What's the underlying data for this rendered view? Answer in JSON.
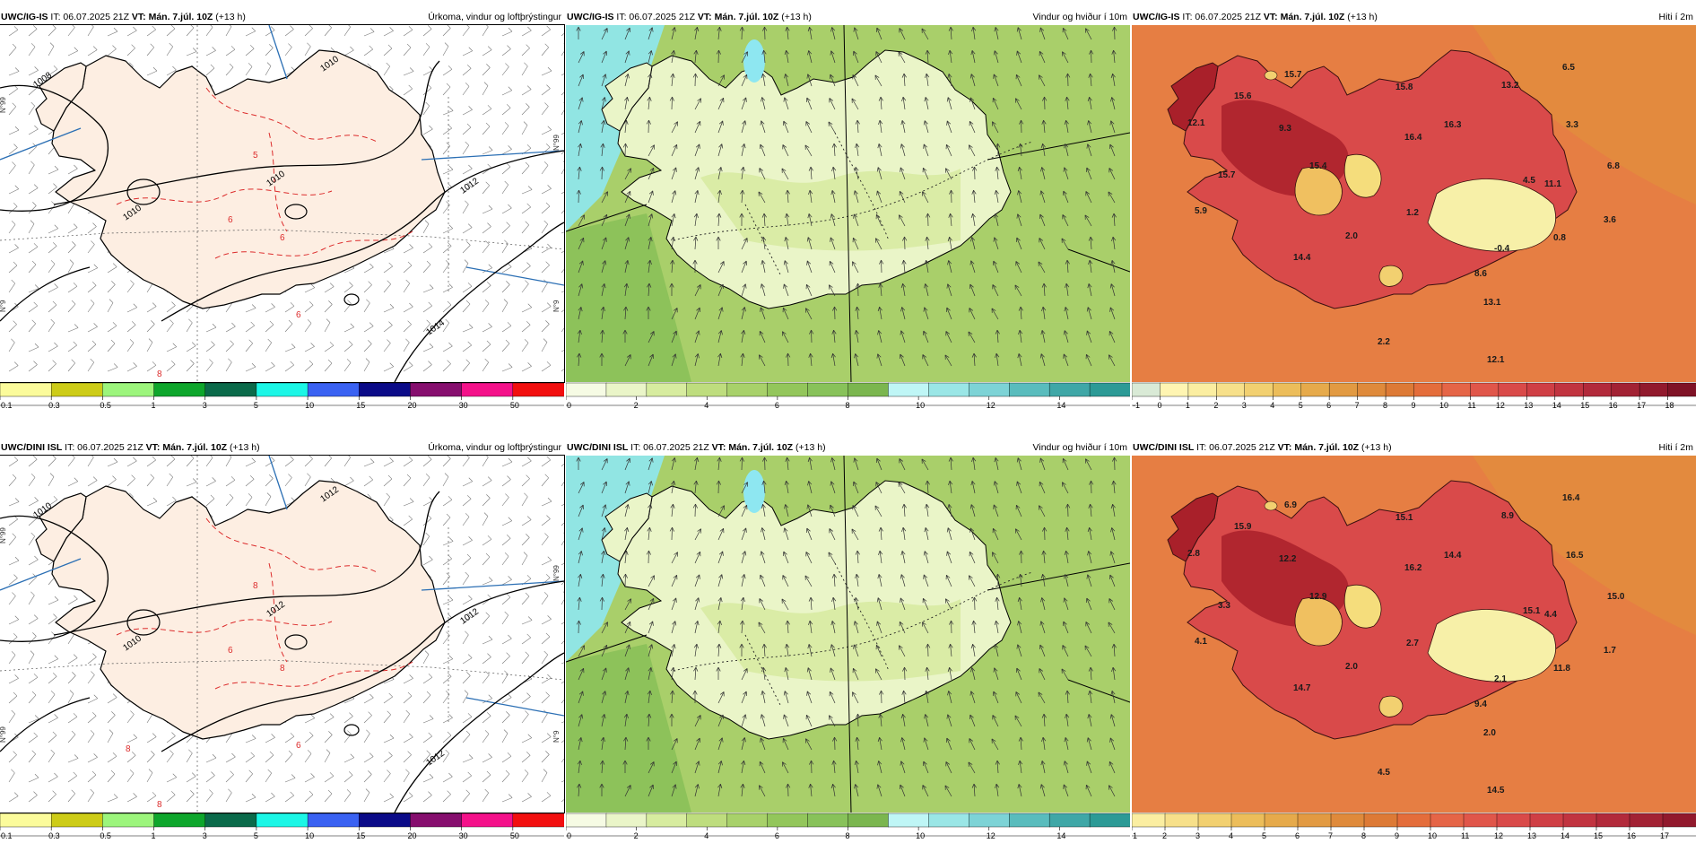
{
  "colors": {
    "land_precip": "#fdeee2",
    "sea": "#ffffff",
    "isobar": "#000000",
    "temp_contour": "#dc2b2b",
    "meridian": "#2b6fb4",
    "wind_mid": "#a9cf6a",
    "wind_low": "#eaf5c8",
    "wind_high": "#8dc25a",
    "wind_lake": "#8ee7f1",
    "temp_bg": "#e67e43",
    "temp_land": "#d94a4a",
    "temp_hot": "#a9202a",
    "temp_cold": "#f7f0a8"
  },
  "precip_scale": {
    "labels": [
      "0.1",
      "0.3",
      "0.5",
      "1",
      "3",
      "5",
      "10",
      "15",
      "20",
      "30",
      "50"
    ],
    "colors": [
      "#fbfb9b",
      "#cdcc18",
      "#9cf57c",
      "#0ea62c",
      "#0b6a4a",
      "#1cf6e6",
      "#3a62f2",
      "#0b0b88",
      "#860e6e",
      "#f4118a",
      "#f20f0f"
    ]
  },
  "wind_scale": {
    "labels": [
      "0",
      "2",
      "4",
      "6",
      "8",
      "10",
      "12",
      "14"
    ],
    "colors": [
      "#f6fbe4",
      "#eaf5c8",
      "#d7ec9f",
      "#bedd7e",
      "#a8d16a",
      "#93c65b",
      "#88c25a",
      "#7bb64f",
      "#bff6f6",
      "#9ae6e6",
      "#7dd3d6",
      "#59bcbd",
      "#3fa7a7",
      "#2c9a96"
    ]
  },
  "temp_scale_top": {
    "labels": [
      "-1",
      "0",
      "1",
      "2",
      "3",
      "4",
      "5",
      "6",
      "7",
      "8",
      "9",
      "10",
      "11",
      "12",
      "13",
      "14",
      "15",
      "16",
      "17",
      "18"
    ],
    "colors": [
      "#d9ead6",
      "#fff5b2",
      "#fbeea1",
      "#f7e08a",
      "#f2d070",
      "#ecbd5a",
      "#e6aa4b",
      "#e29a42",
      "#df8a3b",
      "#dd7a36",
      "#e46d3b",
      "#e56547",
      "#e0564a",
      "#d94a49",
      "#cf3f45",
      "#c13440",
      "#b22a3b",
      "#a22234",
      "#91192d",
      "#7f1226"
    ]
  },
  "temp_scale_bottom": {
    "labels": [
      "1",
      "2",
      "3",
      "4",
      "5",
      "6",
      "7",
      "8",
      "9",
      "10",
      "11",
      "12",
      "13",
      "14",
      "15",
      "16",
      "17"
    ],
    "colors": [
      "#fbeea1",
      "#f7e08a",
      "#f2d070",
      "#ecbd5a",
      "#e6aa4b",
      "#e29a42",
      "#df8a3b",
      "#dd7a36",
      "#e46d3b",
      "#e56547",
      "#e0564a",
      "#d94a49",
      "#cf3f45",
      "#c13440",
      "#b22a3b",
      "#a22234",
      "#91192d"
    ]
  },
  "panels": [
    {
      "model": "UWC/IG-IS",
      "init": " IT: 06.07.2025 21Z ",
      "vt_label": "VT:",
      "vt_value": " Mán. 7.júl. 10Z",
      "lead": " (+13 h)",
      "title": "Úrkoma, vindur og loftþrýstingur",
      "isobars": [
        "1008",
        "1010",
        "1010",
        "1010",
        "1012",
        "1014"
      ],
      "temps": [
        "5",
        "6",
        "6",
        "8",
        "6"
      ],
      "lat_labels": [
        "N°99",
        "N°9",
        "N°99",
        "N°9"
      ]
    },
    {
      "model": "UWC/IG-IS",
      "init": " IT: 06.07.2025 21Z ",
      "vt_label": "VT:",
      "vt_value": " Mán. 7.júl. 10Z",
      "lead": " (+13 h)",
      "title": "Vindur og hviður í 10m"
    },
    {
      "model": "UWC/IG-IS",
      "init": " IT: 06.07.2025 21Z ",
      "vt_label": "VT:",
      "vt_value": " Mán. 7.júl. 10Z",
      "lead": " (+13 h)",
      "title": "Hiti í 2m",
      "temps": [
        "15.7",
        "6.5",
        "15.6",
        "15.8",
        "13.2",
        "12.1",
        "9.3",
        "16.3",
        "16.4",
        "3.3",
        "15.4",
        "6.8",
        "15.7",
        "4.5",
        "11.1",
        "5.9",
        "1.2",
        "2.0",
        "3.6",
        "-0.4",
        "0.8",
        "14.4",
        "8.6",
        "13.1",
        "2.2",
        "12.1"
      ]
    },
    {
      "model": "UWC/DINI ISL",
      "init": " IT: 06.07.2025 21Z ",
      "vt_label": "VT:",
      "vt_value": " Mán. 7.júl. 10Z",
      "lead": " (+13 h)",
      "title": "Úrkoma, vindur og loftþrýstingur",
      "isobars": [
        "1010",
        "1010",
        "1012",
        "1012",
        "1012",
        "1012"
      ],
      "temps": [
        "8",
        "6",
        "6",
        "8",
        "8",
        "8"
      ],
      "lat_labels": [
        "N°99",
        "N°99",
        "N°99",
        "N°9"
      ]
    },
    {
      "model": "UWC/DINI ISL",
      "init": " IT: 06.07.2025 21Z ",
      "vt_label": "VT:",
      "vt_value": " Mán. 7.júl. 10Z",
      "lead": " (+13 h)",
      "title": "Vindur og hviður í 10m"
    },
    {
      "model": "UWC/DINI ISL",
      "init": " IT: 06.07.2025 21Z ",
      "vt_label": "VT:",
      "vt_value": " Mán. 7.júl. 10Z",
      "lead": " (+13 h)",
      "title": "Hiti í 2m",
      "temps": [
        "6.9",
        "16.4",
        "15.9",
        "15.1",
        "8.9",
        "2.8",
        "12.2",
        "14.4",
        "16.2",
        "16.5",
        "12.9",
        "15.0",
        "3.3",
        "15.1",
        "4.4",
        "4.1",
        "2.7",
        "2.0",
        "1.7",
        "2.1",
        "11.8",
        "14.7",
        "9.4",
        "2.0",
        "4.5",
        "14.5"
      ]
    }
  ]
}
